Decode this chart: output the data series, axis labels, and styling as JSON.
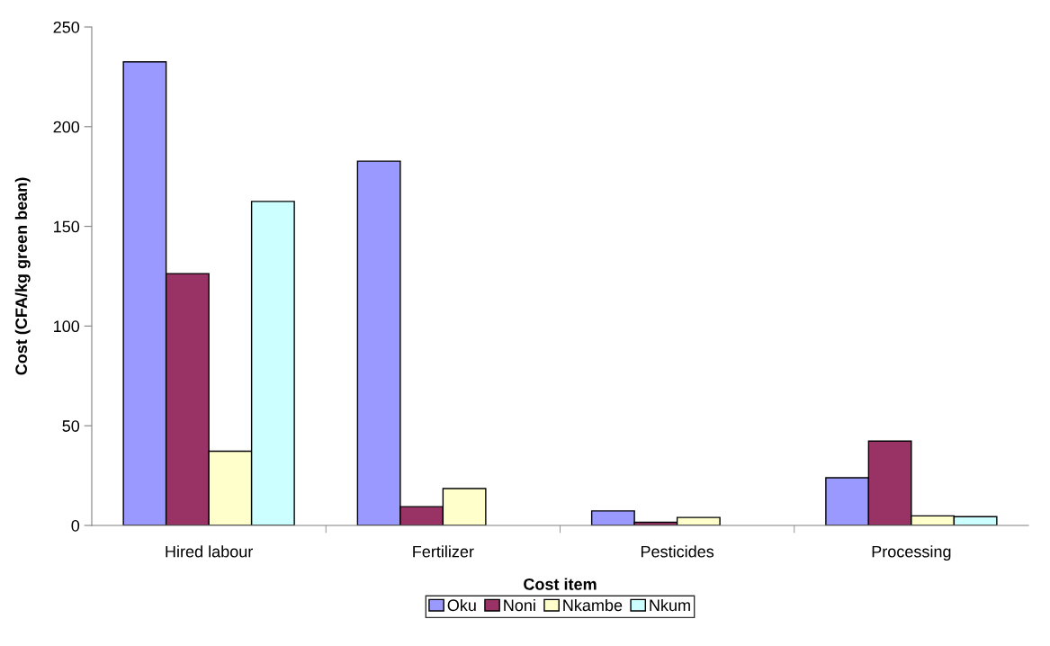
{
  "chart_data": {
    "type": "bar",
    "xlabel": "Cost item",
    "ylabel": "Cost (CFA/kg green bean)",
    "categories": [
      "Hired labour",
      "Fertilizer",
      "Pesticides",
      "Processing"
    ],
    "series": [
      {
        "name": "Oku",
        "color": "#9999ff",
        "values": [
          232.5,
          182.7,
          7.3,
          23.9
        ]
      },
      {
        "name": "Noni",
        "color": "#993366",
        "values": [
          126.3,
          9.4,
          1.6,
          42.3
        ]
      },
      {
        "name": "Nkambe",
        "color": "#ffffcc",
        "values": [
          37.2,
          18.5,
          4.0,
          4.8
        ]
      },
      {
        "name": "Nkum",
        "color": "#ccffff",
        "values": [
          162.5,
          null,
          null,
          4.4
        ]
      }
    ],
    "ylim": [
      0,
      250
    ],
    "yticks": [
      0,
      50,
      100,
      150,
      200,
      250
    ],
    "grid": false,
    "legend": "bottom"
  }
}
